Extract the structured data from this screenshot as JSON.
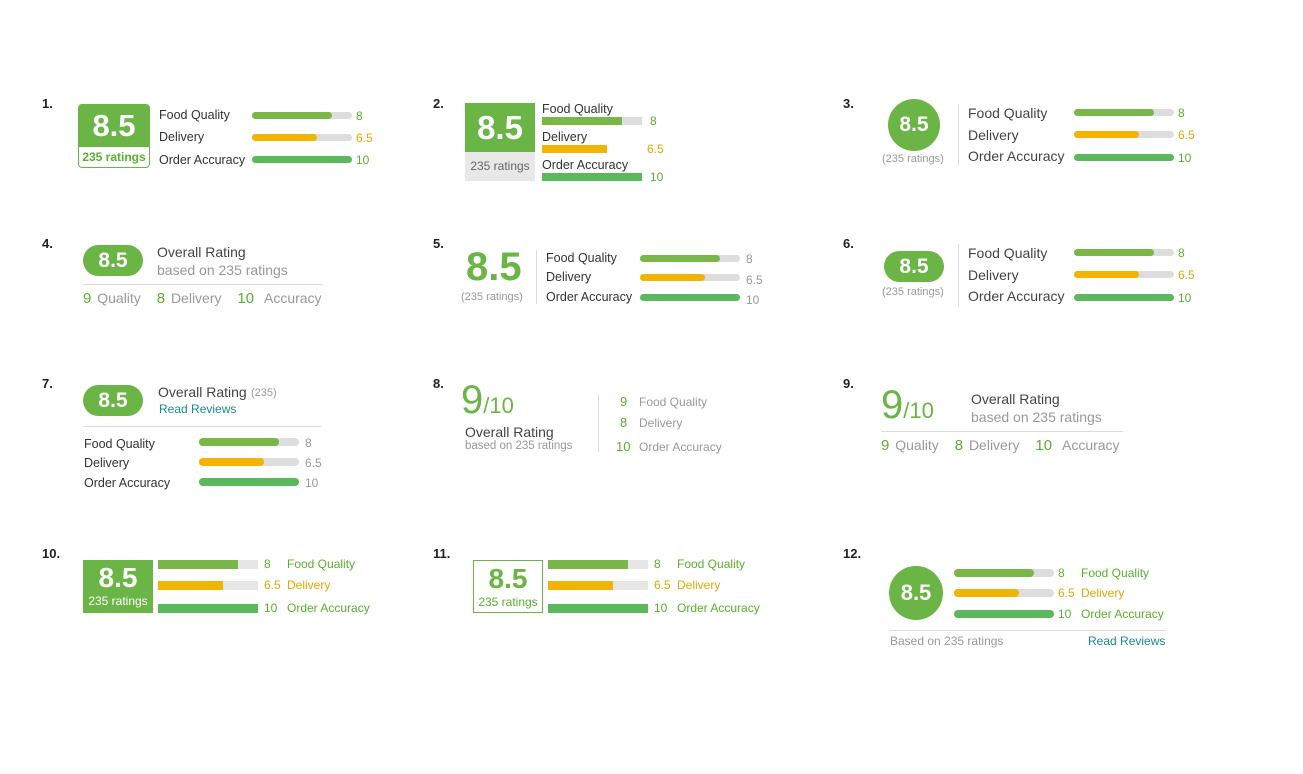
{
  "numbers": [
    "1.",
    "2.",
    "3.",
    "4.",
    "5.",
    "6.",
    "7.",
    "8.",
    "9.",
    "10.",
    "11.",
    "12."
  ],
  "score": "8.5",
  "ratings_count": "235 ratings",
  "ratings_paren": "(235 ratings)",
  "ratings_paren_short": "(235)",
  "categories": {
    "food": "Food Quality",
    "delivery": "Delivery",
    "order": "Order Accuracy"
  },
  "values": {
    "food": "8",
    "delivery": "6.5",
    "order": "10"
  },
  "levels": {
    "food": 0.8,
    "delivery": 0.65,
    "order": 1.0
  },
  "overall_rating": "Overall Rating",
  "based_on": "based on 235 ratings",
  "based_on_cap": "Based on 235 ratings",
  "read_reviews": "Read Reviews",
  "summary": {
    "quality_val": "9",
    "quality": "Quality",
    "delivery_val": "8",
    "delivery": "Delivery",
    "accuracy_val": "10",
    "accuracy": "Accuracy"
  },
  "nine": "9",
  "out_of_ten": "/10",
  "colors": {
    "green": "#7ab648",
    "yellow": "#f2b400",
    "bright_green": "#5cb85c",
    "teal": "#1a8a8a"
  }
}
